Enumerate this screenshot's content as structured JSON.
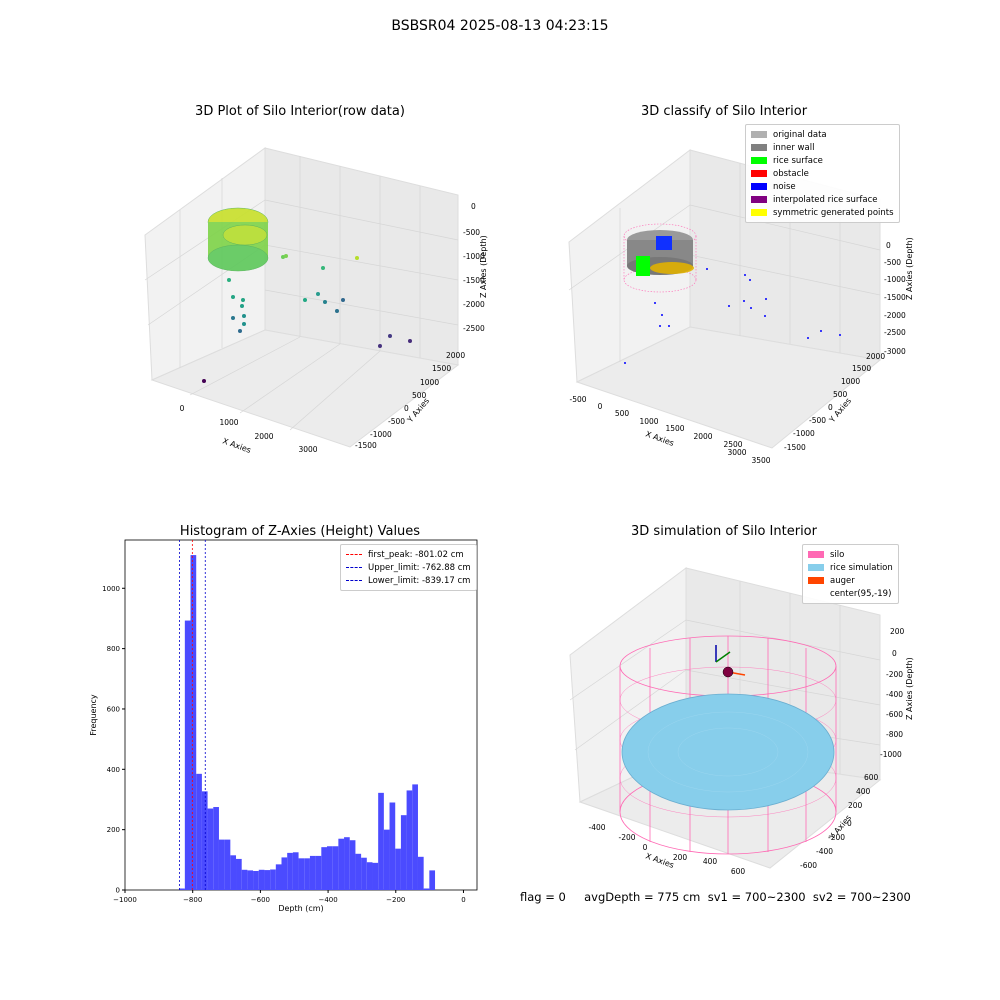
{
  "suptitle": "BSBSR04 2025-08-13 04:23:15",
  "status_text": "flag = 0     avgDepth = 775 cm  sv1 = 700~2300  sv2 = 700~2300",
  "colors": {
    "hist_bar": "#4b4bff",
    "first_peak": "#ff0000",
    "limits": "#0000cc",
    "silo": "#ff69b4",
    "rice_sim": "#87ceeb",
    "auger": "#ff4500"
  },
  "chart_data": [
    {
      "type": "scatter",
      "title": "3D Plot of Silo Interior(row data)",
      "xlabel": "X Axies",
      "ylabel": "Y Axies",
      "zlabel": "Z Axies (Depth)",
      "x_ticks": [
        "0",
        "1000",
        "2000",
        "3000"
      ],
      "y_ticks": [
        "-1500",
        "-1000",
        "-500",
        "0",
        "500",
        "1000",
        "1500",
        "2000"
      ],
      "z_ticks": [
        "0",
        "-500",
        "-1000",
        "-1500",
        "-2000",
        "-2500"
      ]
    },
    {
      "type": "scatter",
      "title": "3D classify of Silo Interior",
      "xlabel": "X Axies",
      "ylabel": "Y Axies",
      "zlabel": "Z Axies (Depth)",
      "x_ticks": [
        "-500",
        "0",
        "500",
        "1000",
        "1500",
        "2000",
        "2500",
        "3000",
        "3500"
      ],
      "y_ticks": [
        "-1500",
        "-1000",
        "-500",
        "0",
        "500",
        "1000",
        "1500",
        "2000"
      ],
      "z_ticks": [
        "0",
        "-500",
        "-1000",
        "-1500",
        "-2000",
        "-2500",
        "-3000"
      ],
      "legend": [
        {
          "label": "original data",
          "color": "#b0b0b0"
        },
        {
          "label": "inner wall",
          "color": "#808080"
        },
        {
          "label": "rice surface",
          "color": "#00ff00"
        },
        {
          "label": "obstacle",
          "color": "#ff0000"
        },
        {
          "label": "noise",
          "color": "#0000ff"
        },
        {
          "label": "interpolated rice surface",
          "color": "#800080"
        },
        {
          "label": "symmetric generated points",
          "color": "#ffff00"
        }
      ]
    },
    {
      "type": "bar",
      "title": "Histogram of Z-Axies (Height) Values",
      "xlabel": "Depth (cm)",
      "ylabel": "Frequency",
      "xlim": [
        -1000,
        40
      ],
      "ylim": [
        0,
        1160
      ],
      "x_ticks": [
        -1000,
        -800,
        -600,
        -400,
        -200,
        0
      ],
      "x_tick_labels": [
        "−1000",
        "−800",
        "−600",
        "−400",
        "−200",
        "0"
      ],
      "y_ticks": [
        0,
        200,
        400,
        600,
        800,
        1000
      ],
      "bin_start": -840,
      "bin_width": 16.8,
      "values": [
        5,
        893,
        1110,
        385,
        327,
        270,
        275,
        167,
        167,
        115,
        103,
        67,
        65,
        63,
        67,
        66,
        68,
        85,
        108,
        123,
        125,
        105,
        105,
        113,
        113,
        142,
        145,
        145,
        170,
        175,
        165,
        120,
        107,
        92,
        90,
        322,
        200,
        290,
        137,
        248,
        330,
        350,
        110,
        5,
        65
      ],
      "lines": [
        {
          "label": "first_peak: -801.02 cm",
          "x": -801.02,
          "color": "#ff0000"
        },
        {
          "label": "Upper_limit: -762.88 cm",
          "x": -762.88,
          "color": "#0000cc"
        },
        {
          "label": "Lower_limit: -839.17 cm",
          "x": -839.17,
          "color": "#0000cc"
        }
      ]
    },
    {
      "type": "scatter",
      "title": "3D simulation of Silo Interior",
      "xlabel": "X Axies",
      "ylabel": "Y Axies",
      "zlabel": "Z Axies (Depth)",
      "x_ticks": [
        "-400",
        "-200",
        "0",
        "200",
        "400",
        "600"
      ],
      "y_ticks": [
        "-600",
        "-400",
        "-200",
        "0",
        "200",
        "400",
        "600"
      ],
      "z_ticks": [
        "200",
        "0",
        "-200",
        "-400",
        "-600",
        "-800",
        "-1000"
      ],
      "legend": [
        {
          "label": "silo",
          "color": "#ff69b4"
        },
        {
          "label": "rice simulation",
          "color": "#87ceeb"
        },
        {
          "label": "auger",
          "color": "#ff4500"
        },
        {
          "label": "center(95,-19)",
          "color": "none"
        }
      ]
    }
  ]
}
